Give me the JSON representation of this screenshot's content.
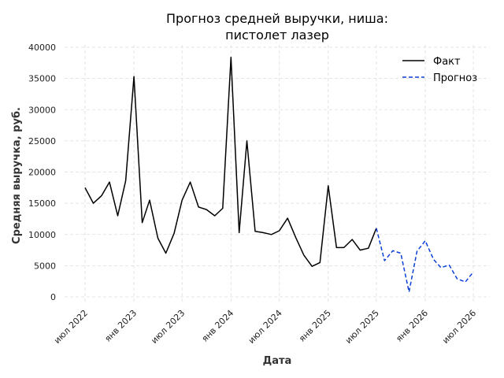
{
  "chart_data": {
    "type": "line",
    "title_line1": "Прогноз средней выручки, ниша:",
    "title_line2": "пистолет лазер",
    "xlabel": "Дата",
    "ylabel": "Средняя выручка, руб.",
    "ylim": [
      0,
      40000
    ],
    "yticks": [
      0,
      5000,
      10000,
      15000,
      20000,
      25000,
      30000,
      35000,
      40000
    ],
    "xticks": [
      {
        "date": "2022-07-01",
        "label": "июл 2022"
      },
      {
        "date": "2023-01-01",
        "label": "янв 2023"
      },
      {
        "date": "2023-07-01",
        "label": "июл 2023"
      },
      {
        "date": "2024-01-01",
        "label": "янв 2024"
      },
      {
        "date": "2024-07-01",
        "label": "июл 2024"
      },
      {
        "date": "2025-01-01",
        "label": "янв 2025"
      },
      {
        "date": "2025-07-01",
        "label": "июл 2025"
      },
      {
        "date": "2026-01-01",
        "label": "янв 2026"
      },
      {
        "date": "2026-07-01",
        "label": "июл 2026"
      }
    ],
    "grid": true,
    "legend_position": "top-right",
    "series": [
      {
        "name": "Факт",
        "color": "#000000",
        "style": "solid",
        "points": [
          [
            "2022-07-01",
            17500
          ],
          [
            "2022-08-01",
            15000
          ],
          [
            "2022-09-01",
            16200
          ],
          [
            "2022-10-01",
            18400
          ],
          [
            "2022-11-01",
            13000
          ],
          [
            "2022-12-01",
            18600
          ],
          [
            "2023-01-01",
            35300
          ],
          [
            "2023-02-01",
            11900
          ],
          [
            "2023-03-01",
            15500
          ],
          [
            "2023-04-01",
            9400
          ],
          [
            "2023-05-01",
            7000
          ],
          [
            "2023-06-01",
            10200
          ],
          [
            "2023-07-01",
            15500
          ],
          [
            "2023-08-01",
            18400
          ],
          [
            "2023-09-01",
            14400
          ],
          [
            "2023-10-01",
            14000
          ],
          [
            "2023-11-01",
            13000
          ],
          [
            "2023-12-01",
            14200
          ],
          [
            "2024-01-01",
            38400
          ],
          [
            "2024-02-01",
            10300
          ],
          [
            "2024-03-01",
            25000
          ],
          [
            "2024-04-01",
            10500
          ],
          [
            "2024-05-01",
            10300
          ],
          [
            "2024-06-01",
            10000
          ],
          [
            "2024-07-01",
            10600
          ],
          [
            "2024-08-01",
            12600
          ],
          [
            "2024-09-01",
            9500
          ],
          [
            "2024-10-01",
            6700
          ],
          [
            "2024-11-01",
            4900
          ],
          [
            "2024-12-01",
            5500
          ],
          [
            "2025-01-01",
            17800
          ],
          [
            "2025-02-01",
            7900
          ],
          [
            "2025-03-01",
            7900
          ],
          [
            "2025-04-01",
            9200
          ],
          [
            "2025-05-01",
            7500
          ],
          [
            "2025-06-01",
            7800
          ],
          [
            "2025-07-01",
            11000
          ]
        ]
      },
      {
        "name": "Прогноз",
        "color": "#0b3fd6",
        "style": "dashed",
        "points": [
          [
            "2025-07-01",
            11000
          ],
          [
            "2025-08-01",
            5800
          ],
          [
            "2025-09-01",
            7400
          ],
          [
            "2025-10-01",
            7000
          ],
          [
            "2025-11-01",
            800
          ],
          [
            "2025-12-01",
            7300
          ],
          [
            "2026-01-01",
            9000
          ],
          [
            "2026-02-01",
            6000
          ],
          [
            "2026-03-01",
            4700
          ],
          [
            "2026-04-01",
            5100
          ],
          [
            "2026-05-01",
            2900
          ],
          [
            "2026-06-01",
            2400
          ],
          [
            "2026-07-01",
            4000
          ]
        ]
      }
    ]
  }
}
